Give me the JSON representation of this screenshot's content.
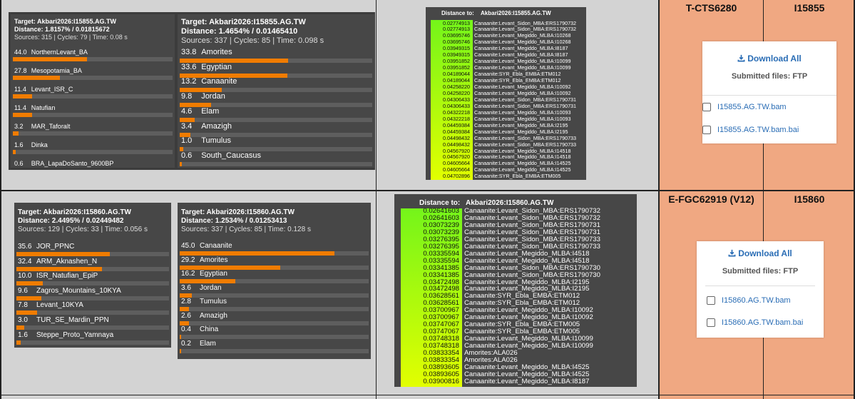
{
  "row1": {
    "panelA": {
      "target": "Target: Akbari2026:I15855.AG.TW",
      "distance": "Distance: 1.8157% / 0.01815672",
      "meta": "Sources: 315 | Cycles: 79 | Time: 0.08 s",
      "items": [
        {
          "value": "44.0",
          "name": "NorthernLevant_BA",
          "pct": 44.0
        },
        {
          "value": "27.8",
          "name": "Mesopotamia_BA",
          "pct": 27.8
        },
        {
          "value": "11.4",
          "name": "Levant_ISR_C",
          "pct": 11.4
        },
        {
          "value": "11.4",
          "name": "Natufian",
          "pct": 11.4
        },
        {
          "value": "3.2",
          "name": "MAR_Taforalt",
          "pct": 3.2
        },
        {
          "value": "1.6",
          "name": "Dinka",
          "pct": 1.6
        },
        {
          "value": "0.6",
          "name": "BRA_LapaDoSanto_9600BP",
          "pct": 0.6
        }
      ]
    },
    "panelB": {
      "target": "Target: Akbari2026:I15855.AG.TW",
      "distance": "Distance: 1.4654% / 0.01465410",
      "meta": "Sources: 337 | Cycles: 85 | Time: 0.098 s",
      "items": [
        {
          "value": "33.8",
          "name": "Amorites",
          "pct": 33.8
        },
        {
          "value": "33.6",
          "name": "Egyptian",
          "pct": 33.6
        },
        {
          "value": "13.2",
          "name": "Canaanite",
          "pct": 13.2
        },
        {
          "value": "9.8",
          "name": "Jordan",
          "pct": 9.8
        },
        {
          "value": "4.6",
          "name": "Elam",
          "pct": 4.6
        },
        {
          "value": "3.4",
          "name": "Amazigh",
          "pct": 3.4
        },
        {
          "value": "1.0",
          "name": "Tumulus",
          "pct": 1.0
        },
        {
          "value": "0.6",
          "name": "South_Caucasus",
          "pct": 0.6
        }
      ]
    },
    "dist": {
      "label": "Distance to:",
      "target": "Akbari2026:I15855.AG.TW",
      "rows": [
        [
          "0.02774913",
          "Canaanite:Levant_Sidon_MBA:ERS1790732"
        ],
        [
          "0.02774913",
          "Canaanite:Levant_Sidon_MBA:ERS1790732"
        ],
        [
          "0.03695746",
          "Canaanite:Levant_Megiddo_MLBA:I10268"
        ],
        [
          "0.03695746",
          "Canaanite:Levant_Megiddo_MLBA:I10268"
        ],
        [
          "0.03949315",
          "Canaanite:Levant_Megiddo_MLBA:I8187"
        ],
        [
          "0.03949315",
          "Canaanite:Levant_Megiddo_MLBA:I8187"
        ],
        [
          "0.03951852",
          "Canaanite:Levant_Megiddo_MLBA:I10099"
        ],
        [
          "0.03951852",
          "Canaanite:Levant_Megiddo_MLBA:I10099"
        ],
        [
          "0.04189044",
          "Canaanite:SYR_Ebla_EMBA:ETM012"
        ],
        [
          "0.04189044",
          "Canaanite:SYR_Ebla_EMBA:ETM012"
        ],
        [
          "0.04258220",
          "Canaanite:Levant_Megiddo_MLBA:I10092"
        ],
        [
          "0.04258220",
          "Canaanite:Levant_Megiddo_MLBA:I10092"
        ],
        [
          "0.04306433",
          "Canaanite:Levant_Sidon_MBA:ERS1790731"
        ],
        [
          "0.04306433",
          "Canaanite:Levant_Sidon_MBA:ERS1790731"
        ],
        [
          "0.04322218",
          "Canaanite:Levant_Megiddo_MLBA:I10093"
        ],
        [
          "0.04322218",
          "Canaanite:Levant_Megiddo_MLBA:I10093"
        ],
        [
          "0.04459384",
          "Canaanite:Levant_Megiddo_MLBA:I2195"
        ],
        [
          "0.04459384",
          "Canaanite:Levant_Megiddo_MLBA:I2195"
        ],
        [
          "0.04498432",
          "Canaanite:Levant_Sidon_MBA:ERS1790733"
        ],
        [
          "0.04498432",
          "Canaanite:Levant_Sidon_MBA:ERS1790733"
        ],
        [
          "0.04567920",
          "Canaanite:Levant_Megiddo_MLBA:I14518"
        ],
        [
          "0.04567920",
          "Canaanite:Levant_Megiddo_MLBA:I14518"
        ],
        [
          "0.04605664",
          "Canaanite:Levant_Megiddo_MLBA:I14525"
        ],
        [
          "0.04605664",
          "Canaanite:Levant_Megiddo_MLBA:I14525"
        ],
        [
          "0.04702896",
          "Canaanite:SYR_Ebla_EMBA:ETM005"
        ]
      ]
    },
    "haplogroup": "T-CTS6280",
    "sample_id": "I15855",
    "download": {
      "button": "Download All",
      "submitted": "Submitted files: FTP",
      "files": [
        "I15855.AG.TW.bam",
        "I15855.AG.TW.bam.bai"
      ]
    }
  },
  "row2": {
    "panelA": {
      "target": "Target: Akbari2026:I15860.AG.TW",
      "distance": "Distance: 2.4495% / 0.02449482",
      "meta": "Sources: 129 | Cycles: 33 | Time: 0.056 s",
      "items": [
        {
          "value": "35.6",
          "name": "JOR_PPNC",
          "pct": 35.6
        },
        {
          "value": "32.4",
          "name": "ARM_Aknashen_N",
          "pct": 32.4
        },
        {
          "value": "10.0",
          "name": "ISR_Natufian_EpiP",
          "pct": 10.0
        },
        {
          "value": "9.6",
          "name": "Zagros_Mountains_10KYA",
          "pct": 9.6
        },
        {
          "value": "7.8",
          "name": "Levant_10KYA",
          "pct": 7.8
        },
        {
          "value": "3.0",
          "name": "TUR_SE_Mardin_PPN",
          "pct": 3.0
        },
        {
          "value": "1.6",
          "name": "Steppe_Proto_Yamnaya",
          "pct": 1.6
        }
      ]
    },
    "panelB": {
      "target": "Target: Akbari2026:I15860.AG.TW",
      "distance": "Distance: 1.2534% / 0.01253413",
      "meta": "Sources: 337 | Cycles: 85 | Time: 0.128 s",
      "items": [
        {
          "value": "45.0",
          "name": "Canaanite",
          "pct": 45.0
        },
        {
          "value": "29.2",
          "name": "Amorites",
          "pct": 29.2
        },
        {
          "value": "16.2",
          "name": "Egyptian",
          "pct": 16.2
        },
        {
          "value": "3.6",
          "name": "Jordan",
          "pct": 3.6
        },
        {
          "value": "2.8",
          "name": "Tumulus",
          "pct": 2.8
        },
        {
          "value": "2.6",
          "name": "Amazigh",
          "pct": 2.6
        },
        {
          "value": "0.4",
          "name": "China",
          "pct": 0.4
        },
        {
          "value": "0.2",
          "name": "Elam",
          "pct": 0.2
        }
      ]
    },
    "dist": {
      "label": "Distance to:",
      "target": "Akbari2026:I15860.AG.TW",
      "rows": [
        [
          "0.02641603",
          "Canaanite:Levant_Sidon_MBA:ERS1790732"
        ],
        [
          "0.02641603",
          "Canaanite:Levant_Sidon_MBA:ERS1790732"
        ],
        [
          "0.03073239",
          "Canaanite:Levant_Sidon_MBA:ERS1790731"
        ],
        [
          "0.03073239",
          "Canaanite:Levant_Sidon_MBA:ERS1790731"
        ],
        [
          "0.03276395",
          "Canaanite:Levant_Sidon_MBA:ERS1790733"
        ],
        [
          "0.03276395",
          "Canaanite:Levant_Sidon_MBA:ERS1790733"
        ],
        [
          "0.03335594",
          "Canaanite:Levant_Megiddo_MLBA:I4518"
        ],
        [
          "0.03335594",
          "Canaanite:Levant_Megiddo_MLBA:I4518"
        ],
        [
          "0.03341385",
          "Canaanite:Levant_Sidon_MBA:ERS1790730"
        ],
        [
          "0.03341385",
          "Canaanite:Levant_Sidon_MBA:ERS1790730"
        ],
        [
          "0.03472498",
          "Canaanite:Levant_Megiddo_MLBA:I2195"
        ],
        [
          "0.03472498",
          "Canaanite:Levant_Megiddo_MLBA:I2195"
        ],
        [
          "0.03628561",
          "Canaanite:SYR_Ebla_EMBA:ETM012"
        ],
        [
          "0.03628561",
          "Canaanite:SYR_Ebla_EMBA:ETM012"
        ],
        [
          "0.03700967",
          "Canaanite:Levant_Megiddo_MLBA:I10092"
        ],
        [
          "0.03700967",
          "Canaanite:Levant_Megiddo_MLBA:I10092"
        ],
        [
          "0.03747067",
          "Canaanite:SYR_Ebla_EMBA:ETM005"
        ],
        [
          "0.03747067",
          "Canaanite:SYR_Ebla_EMBA:ETM005"
        ],
        [
          "0.03748318",
          "Canaanite:Levant_Megiddo_MLBA:I10099"
        ],
        [
          "0.03748318",
          "Canaanite:Levant_Megiddo_MLBA:I10099"
        ],
        [
          "0.03833354",
          "Amorites:ALA026"
        ],
        [
          "0.03833354",
          "Amorites:ALA026"
        ],
        [
          "0.03893605",
          "Canaanite:Levant_Megiddo_MLBA:I4525"
        ],
        [
          "0.03893605",
          "Canaanite:Levant_Megiddo_MLBA:I4525"
        ],
        [
          "0.03900816",
          "Canaanite:Levant_Megiddo_MLBA:I8187"
        ]
      ]
    },
    "haplogroup": "E-FGC62919 (V12)",
    "sample_id": "I15860",
    "download": {
      "button": "Download All",
      "submitted": "Submitted files: FTP",
      "files": [
        "I15860.AG.TW.bam",
        "I15860.AG.TW.bam.bai"
      ]
    }
  },
  "colors": {
    "panel_bg": "#474747",
    "bar_fill": "#f07c00",
    "bar_track": "#5e5e5e",
    "cell_bg": "#d3d3d3",
    "salmon": "#f0a882",
    "gradient_top": "#74f51a",
    "gradient_bottom": "#e3ff00",
    "link": "#2a6db5"
  }
}
